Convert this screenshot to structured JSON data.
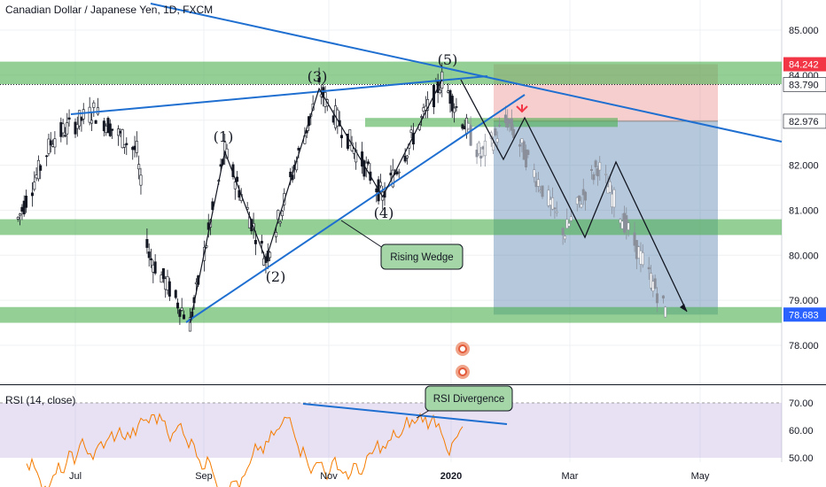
{
  "header": {
    "title": "Canadian Dollar / Japanese Yen, 1D, FXCM"
  },
  "rsi_panel": {
    "title": "RSI (14, close)"
  },
  "colors": {
    "zone_green": "#4caf50",
    "trend_blue": "#1f6fd1",
    "rsi_fill": "#b39ddb",
    "rsi_line": "#f57c00",
    "profit_red": "#e57373",
    "loss_blue": "#5b84b1",
    "price_red": "#f23645",
    "price_blue": "#2962ff",
    "price_dark": "#131722"
  },
  "chart_data": [
    {
      "type": "candlestick",
      "title": "Canadian Dollar / Japanese Yen, 1D, FXCM",
      "x_ticks": [
        "Jul",
        "Sep",
        "Nov",
        "2020",
        "Mar",
        "May"
      ],
      "y_ticks": [
        "85.000",
        "84.000",
        "83.000",
        "82.000",
        "81.000",
        "80.000",
        "79.000",
        "78.000"
      ],
      "ylim": [
        77.2,
        85.6
      ],
      "price_labels": [
        {
          "label": "84.242",
          "value": 84.242,
          "style": "red"
        },
        {
          "label": "83.790",
          "value": 83.79,
          "style": "dark"
        },
        {
          "label": "82.976",
          "value": 82.976,
          "style": "dark"
        },
        {
          "label": "78.683",
          "value": 78.683,
          "style": "blue"
        }
      ],
      "wave_labels": [
        "(1)",
        "(2)",
        "(3)",
        "(4)",
        "(5)"
      ],
      "wave_points": [
        {
          "x": "2019-08-26",
          "y": 78.5
        },
        {
          "x": "2019-09-12",
          "y": 82.3
        },
        {
          "x": "2019-10-02",
          "y": 79.9
        },
        {
          "x": "2019-10-28",
          "y": 83.7
        },
        {
          "x": "2019-11-28",
          "y": 81.3
        },
        {
          "x": "2019-12-27",
          "y": 83.9
        }
      ],
      "annotations": [
        {
          "text": "Rising Wedge"
        },
        {
          "text": "RSI Divergence"
        }
      ],
      "grid": true
    },
    {
      "type": "line",
      "title": "RSI (14, close)",
      "y_ticks": [
        "70.00",
        "60.00",
        "50.00"
      ],
      "ylim": [
        49,
        76
      ],
      "band": [
        50,
        70
      ]
    }
  ]
}
